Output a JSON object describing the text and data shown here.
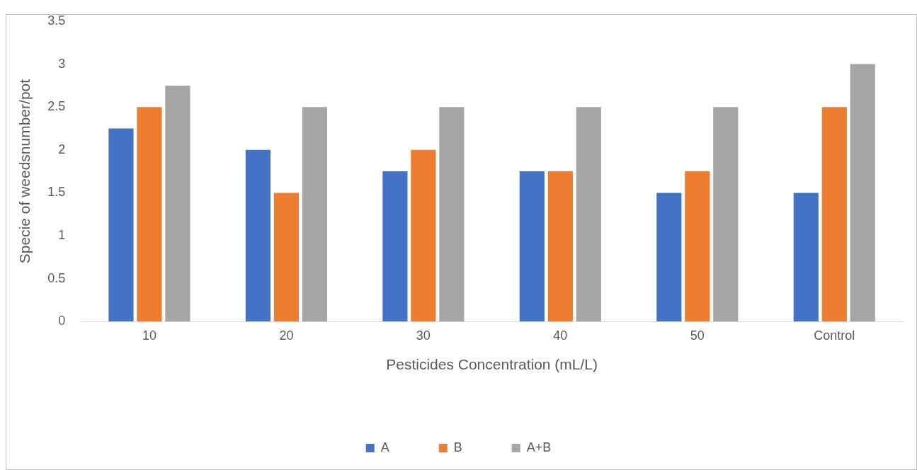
{
  "chart_data": {
    "type": "bar",
    "xlabel": "Pesticides Concentration (mL/L)",
    "ylabel": "Specie of weedsnumber/pot",
    "categories": [
      "10",
      "20",
      "30",
      "40",
      "50",
      "Control"
    ],
    "series": [
      {
        "name": "A",
        "color": "#4472c4",
        "values": [
          2.25,
          2,
          1.75,
          1.75,
          1.5,
          1.5
        ]
      },
      {
        "name": "B",
        "color": "#ed7d31",
        "values": [
          2.5,
          1.5,
          2,
          1.75,
          1.75,
          2.5
        ]
      },
      {
        "name": "A+B",
        "color": "#a5a5a5",
        "values": [
          2.75,
          2.5,
          2.5,
          2.5,
          2.5,
          3
        ]
      }
    ],
    "ylim": [
      0,
      3.5
    ],
    "yticks": [
      0,
      0.5,
      1,
      1.5,
      2,
      2.5,
      3,
      3.5
    ],
    "grid": false,
    "legend": "bottom"
  }
}
